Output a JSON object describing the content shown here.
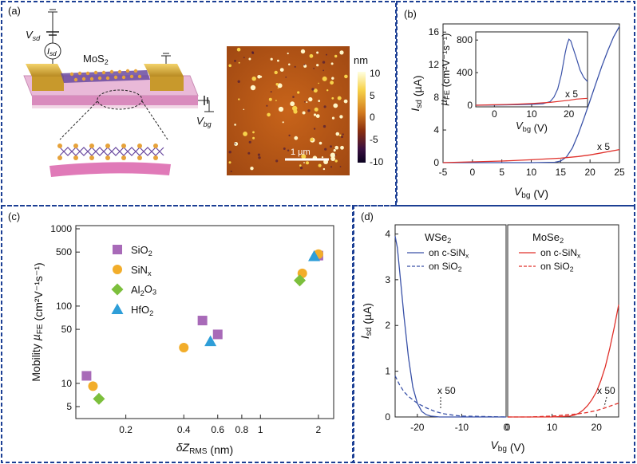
{
  "panels": {
    "a": {
      "label": "(a)",
      "mos2_label": "MoS",
      "mos2_sub": "2",
      "vsd": "V",
      "vsd_sub": "sd",
      "isd": "I",
      "isd_sub": "sd",
      "vbg": "V",
      "vbg_sub": "bg",
      "colorbar_unit": "nm",
      "colorbar_ticks": [
        "10",
        "5",
        "0",
        "-5",
        "-10"
      ],
      "scale_bar": "1 µm"
    },
    "b": {
      "label": "(b)"
    },
    "c": {
      "label": "(c)"
    },
    "d": {
      "label": "(d)"
    }
  },
  "colors": {
    "blue": "#3a52a8",
    "red": "#e0302a",
    "purple": "#a86ab8",
    "orange": "#f2ad2a",
    "green": "#7cbf3c",
    "cyan": "#2e9ed8",
    "border": "#1c3f94"
  },
  "chart_data": [
    {
      "id": "b",
      "type": "line",
      "xlabel": "V",
      "xlabel_sub": "bg",
      "xunit": " (V)",
      "ylabel": "I",
      "ylabel_sub": "sd",
      "yunit": " (µA)",
      "xlim": [
        -5,
        25
      ],
      "ylim": [
        0,
        17
      ],
      "xticks": [
        "-5",
        "0",
        "5",
        "10",
        "15",
        "20",
        "25"
      ],
      "yticks": [
        "0",
        "4",
        "8",
        "12",
        "16"
      ],
      "annotation": "x 5",
      "series": [
        {
          "name": "blue",
          "x": [
            -5,
            0,
            5,
            10,
            14,
            15,
            16,
            17,
            18,
            19,
            20,
            21,
            22,
            23,
            24,
            25
          ],
          "y": [
            0,
            0,
            0,
            0,
            0.05,
            0.2,
            0.7,
            1.8,
            3.5,
            5.5,
            7.6,
            9.7,
            11.8,
            13.7,
            15.4,
            16.7
          ]
        },
        {
          "name": "red",
          "x": [
            -5,
            0,
            5,
            10,
            15,
            18,
            20,
            22,
            25
          ],
          "y": [
            0,
            0.1,
            0.2,
            0.35,
            0.55,
            0.75,
            0.95,
            1.2,
            1.6
          ]
        }
      ],
      "inset": {
        "xlim": [
          -5,
          25
        ],
        "ylim": [
          -20,
          900
        ],
        "xticks": [
          "0",
          "10",
          "20"
        ],
        "yticks": [
          "0",
          "400",
          "800"
        ],
        "xlabel": "V",
        "xlabel_sub": "bg",
        "xunit": " (V)",
        "ylabel": "µ",
        "ylabel_sub": "FE",
        "yunit": " (cm²V⁻¹s⁻¹)",
        "annotation": "x 5",
        "series": [
          {
            "name": "blue",
            "x": [
              -5,
              0,
              5,
              10,
              13,
              15,
              16,
              17,
              18,
              19,
              19.5,
              20,
              20.5,
              21,
              22,
              23,
              24,
              25
            ],
            "y": [
              0,
              2,
              5,
              10,
              18,
              45,
              100,
              200,
              380,
              640,
              740,
              810,
              790,
              720,
              580,
              430,
              340,
              290
            ]
          },
          {
            "name": "red",
            "x": [
              -5,
              0,
              5,
              10,
              15,
              18,
              20,
              22,
              25
            ],
            "y": [
              0,
              5,
              10,
              20,
              35,
              50,
              60,
              75,
              85
            ]
          }
        ]
      }
    },
    {
      "id": "c",
      "type": "scatter",
      "xlabel": "δZ",
      "xlabel_sub": "RMS",
      "xunit": " (nm)",
      "ylabel": "Mobility ",
      "ylabel_mu": "µ",
      "ylabel_sub": "FE",
      "yunit": " (cm²V⁻¹s⁻¹)",
      "xscale": "log",
      "yscale": "log",
      "xlim": [
        0.11,
        2.4
      ],
      "ylim": [
        3.5,
        1100
      ],
      "xticks": [
        {
          "v": 0.2,
          "t": "0.2"
        },
        {
          "v": 0.4,
          "t": "0.4"
        },
        {
          "v": 0.6,
          "t": "0.6"
        },
        {
          "v": 0.8,
          "t": "0.8"
        },
        {
          "v": 1,
          "t": "1"
        },
        {
          "v": 2,
          "t": "2"
        }
      ],
      "yticks": [
        {
          "v": 5,
          "t": "5"
        },
        {
          "v": 10,
          "t": "10"
        },
        {
          "v": 50,
          "t": "50"
        },
        {
          "v": 100,
          "t": "100"
        },
        {
          "v": 500,
          "t": "500"
        },
        {
          "v": 1000,
          "t": "1000"
        }
      ],
      "series": [
        {
          "name": "SiO",
          "sub": "2",
          "marker": "square",
          "color": "#a86ab8",
          "points": [
            [
              0.125,
              12.5
            ],
            [
              0.5,
              65
            ],
            [
              0.6,
              43
            ],
            [
              2.0,
              450
            ]
          ]
        },
        {
          "name": "SiN",
          "sub": "x",
          "marker": "circle",
          "color": "#f2ad2a",
          "points": [
            [
              0.135,
              9.2
            ],
            [
              0.4,
              29
            ],
            [
              1.65,
              265
            ],
            [
              2.0,
              470
            ]
          ]
        },
        {
          "name": "Al",
          "sub": "2",
          "name2": "O",
          "sub2": "3",
          "marker": "diamond",
          "color": "#7cbf3c",
          "points": [
            [
              0.145,
              6.3
            ],
            [
              1.6,
              215
            ]
          ]
        },
        {
          "name": "HfO",
          "sub": "2",
          "marker": "triangle",
          "color": "#2e9ed8",
          "points": [
            [
              0.55,
              35
            ],
            [
              1.9,
              440
            ]
          ]
        }
      ]
    },
    {
      "id": "d",
      "type": "line",
      "ylabel": "I",
      "ylabel_sub": "sd",
      "yunit": " (µA)",
      "xlabel": "V",
      "xlabel_sub": "bg",
      "xunit": " (V)",
      "ylim": [
        0,
        4.2
      ],
      "yticks": [
        "0",
        "1",
        "2",
        "3",
        "4"
      ],
      "left": {
        "title": "WSe",
        "title_sub": "2",
        "xlim": [
          -25,
          0
        ],
        "xticks": [
          "-20",
          "-10",
          "0"
        ],
        "legend": [
          {
            "text": "on c-SiN",
            "sub": "x",
            "style": "solid"
          },
          {
            "text": "on SiO",
            "sub": "2",
            "style": "dashed"
          }
        ],
        "annotation": "x 50",
        "series": [
          {
            "name": "solid",
            "x": [
              -25,
              -24.5,
              -24,
              -23,
              -22,
              -21,
              -20,
              -19,
              -18,
              -17,
              -16,
              -15,
              -10,
              -5,
              0
            ],
            "y": [
              3.95,
              3.7,
              3.2,
              2.2,
              1.3,
              0.65,
              0.3,
              0.12,
              0.05,
              0.02,
              0.01,
              0,
              0,
              0,
              0
            ]
          },
          {
            "name": "dashed",
            "x": [
              -25,
              -24,
              -23,
              -22,
              -20,
              -18,
              -16,
              -14,
              -12,
              -10,
              -5,
              0
            ],
            "y": [
              0.9,
              0.7,
              0.55,
              0.45,
              0.3,
              0.2,
              0.12,
              0.07,
              0.04,
              0.02,
              0.01,
              0
            ]
          }
        ]
      },
      "right": {
        "title": "MoSe",
        "title_sub": "2",
        "xlim": [
          0,
          25
        ],
        "xticks": [
          "0",
          "10",
          "20"
        ],
        "legend": [
          {
            "text": "on c-SiN",
            "sub": "x",
            "style": "solid"
          },
          {
            "text": "on SiO",
            "sub": "2",
            "style": "dashed"
          }
        ],
        "annotation": "x 50",
        "series": [
          {
            "name": "solid",
            "x": [
              0,
              5,
              10,
              14,
              15,
              16,
              17,
              18,
              19,
              20,
              21,
              22,
              23,
              24,
              25
            ],
            "y": [
              0,
              0,
              0,
              0.02,
              0.04,
              0.08,
              0.15,
              0.25,
              0.38,
              0.55,
              0.8,
              1.1,
              1.5,
              1.95,
              2.45
            ]
          },
          {
            "name": "dashed",
            "x": [
              0,
              5,
              10,
              14,
              16,
              18,
              20,
              22,
              24,
              25
            ],
            "y": [
              0,
              0,
              0.02,
              0.05,
              0.07,
              0.1,
              0.14,
              0.2,
              0.27,
              0.3
            ]
          }
        ]
      }
    }
  ]
}
